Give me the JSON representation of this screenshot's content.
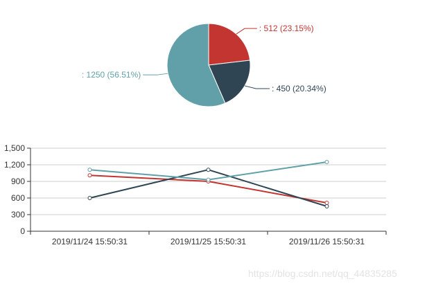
{
  "watermark": "https://blog.csdn.net/qq_44835285",
  "colors": {
    "red": "#c23531",
    "navy": "#2f4554",
    "teal": "#61a0a8",
    "axis": "#333333",
    "grid": "#cccccc"
  },
  "chart_data": [
    {
      "type": "pie",
      "slices": [
        {
          "value": 512,
          "label": ": 512 (23.15%)",
          "color": "#c23531"
        },
        {
          "value": 450,
          "label": ": 450 (20.34%)",
          "color": "#2f4554"
        },
        {
          "value": 1250,
          "label": ": 1250 (56.51%)",
          "color": "#61a0a8"
        }
      ]
    },
    {
      "type": "line",
      "categories": [
        "2019/11/24 15:50:31",
        "2019/11/25 15:50:31",
        "2019/11/26 15:50:31"
      ],
      "ylim": [
        0,
        1500
      ],
      "yticks": [
        0,
        300,
        600,
        900,
        1200,
        1500
      ],
      "ytick_labels": [
        "0",
        "300",
        "600",
        "900",
        "1,200",
        "1,500"
      ],
      "grid": true,
      "series": [
        {
          "values": [
            1010,
            900,
            512
          ],
          "color": "#c23531"
        },
        {
          "values": [
            600,
            1110,
            450
          ],
          "color": "#2f4554"
        },
        {
          "values": [
            1110,
            930,
            1250
          ],
          "color": "#61a0a8"
        }
      ]
    }
  ]
}
